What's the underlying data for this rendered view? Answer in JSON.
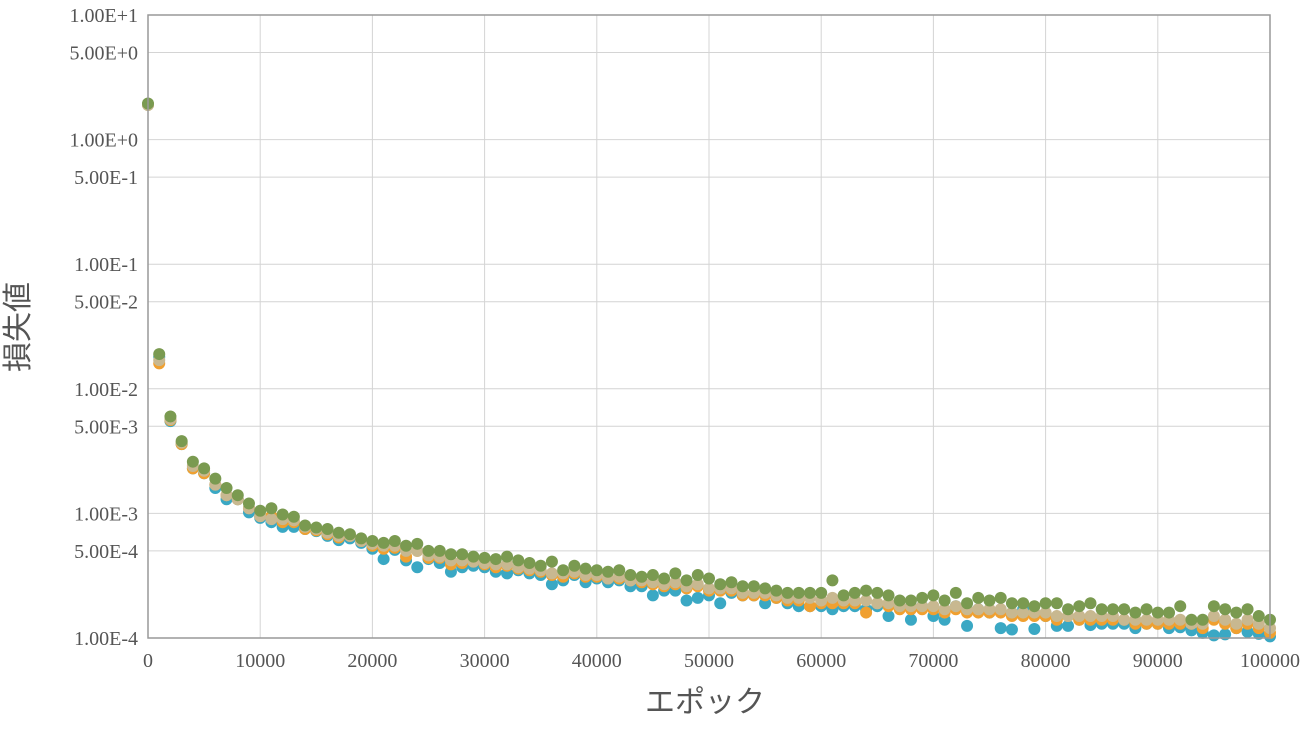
{
  "chart_data": {
    "type": "scatter",
    "xlabel": "エポック",
    "ylabel": "損失値",
    "y_scale": "log",
    "grid": true,
    "legend": "none",
    "xlim": [
      0,
      100000
    ],
    "ylim": [
      0.0001,
      10
    ],
    "x_ticks": [
      0,
      10000,
      20000,
      30000,
      40000,
      50000,
      60000,
      70000,
      80000,
      90000,
      100000
    ],
    "x_tick_labels": [
      "0",
      "10000",
      "20000",
      "30000",
      "40000",
      "50000",
      "60000",
      "70000",
      "80000",
      "90000",
      "100000"
    ],
    "y_ticks": [
      10,
      5,
      1,
      0.5,
      0.1,
      0.05,
      0.01,
      0.005,
      0.001,
      0.0005,
      0.0001
    ],
    "y_tick_labels": [
      "1.00E+1",
      "5.00E+0",
      "1.00E+0",
      "5.00E-1",
      "1.00E-1",
      "5.00E-2",
      "1.00E-2",
      "5.00E-3",
      "1.00E-3",
      "5.00E-4",
      "1.00E-4"
    ],
    "x": [
      0,
      1000,
      2000,
      3000,
      4000,
      5000,
      6000,
      7000,
      8000,
      9000,
      10000,
      11000,
      12000,
      13000,
      14000,
      15000,
      16000,
      17000,
      18000,
      19000,
      20000,
      21000,
      22000,
      23000,
      24000,
      25000,
      26000,
      27000,
      28000,
      29000,
      30000,
      31000,
      32000,
      33000,
      34000,
      35000,
      36000,
      37000,
      38000,
      39000,
      40000,
      41000,
      42000,
      43000,
      44000,
      45000,
      46000,
      47000,
      48000,
      49000,
      50000,
      51000,
      52000,
      53000,
      54000,
      55000,
      56000,
      57000,
      58000,
      59000,
      60000,
      61000,
      62000,
      63000,
      64000,
      65000,
      66000,
      67000,
      68000,
      69000,
      70000,
      71000,
      72000,
      73000,
      74000,
      75000,
      76000,
      77000,
      78000,
      79000,
      80000,
      81000,
      82000,
      83000,
      84000,
      85000,
      86000,
      87000,
      88000,
      89000,
      90000,
      91000,
      92000,
      93000,
      94000,
      95000,
      96000,
      97000,
      98000,
      99000,
      100000
    ],
    "series": [
      {
        "color": "#3aa8c4",
        "values": [
          1.9,
          0.018,
          0.0055,
          0.0036,
          0.0023,
          0.0021,
          0.0016,
          0.0013,
          0.0013,
          0.00102,
          0.00092,
          0.00085,
          0.00078,
          0.00078,
          0.00075,
          0.00072,
          0.00066,
          0.00061,
          0.00063,
          0.00058,
          0.00052,
          0.00043,
          0.00051,
          0.00042,
          0.00037,
          0.00043,
          0.0004,
          0.00034,
          0.00037,
          0.00038,
          0.00037,
          0.00034,
          0.00033,
          0.00035,
          0.00033,
          0.00032,
          0.00027,
          0.00029,
          0.00032,
          0.00028,
          0.0003,
          0.00028,
          0.00029,
          0.00026,
          0.00026,
          0.00022,
          0.00024,
          0.00024,
          0.0002,
          0.00021,
          0.00022,
          0.00019,
          0.00023,
          0.00022,
          0.00022,
          0.00019,
          0.00021,
          0.00019,
          0.00018,
          0.00018,
          0.00018,
          0.00017,
          0.00018,
          0.00018,
          0.00017,
          0.00018,
          0.00015,
          0.00018,
          0.00014,
          0.00018,
          0.00015,
          0.00014,
          0.00018,
          0.000125,
          0.00017,
          0.00016,
          0.00012,
          0.000117,
          0.00017,
          0.000118,
          0.00015,
          0.000125,
          0.000125,
          0.00014,
          0.000127,
          0.00013,
          0.00013,
          0.00013,
          0.00012,
          0.00013,
          0.00013,
          0.00012,
          0.000122,
          0.000115,
          0.00011,
          0.000105,
          0.000107,
          0.00012,
          0.000112,
          0.000108,
          0.000103
        ]
      },
      {
        "color": "#f0a030",
        "values": [
          1.9,
          0.016,
          0.0056,
          0.0036,
          0.0023,
          0.0021,
          0.0017,
          0.0014,
          0.0013,
          0.0011,
          0.00095,
          0.00095,
          0.00085,
          0.00085,
          0.00075,
          0.00073,
          0.00068,
          0.00064,
          0.00066,
          0.0006,
          0.00055,
          0.00052,
          0.00053,
          0.00045,
          0.0005,
          0.00044,
          0.00044,
          0.00039,
          0.0004,
          0.00041,
          0.00039,
          0.00037,
          0.00038,
          0.00036,
          0.00035,
          0.00034,
          0.00032,
          0.00031,
          0.00033,
          0.00031,
          0.00031,
          0.0003,
          0.0003,
          0.00029,
          0.00028,
          0.00027,
          0.00026,
          0.00027,
          0.00025,
          0.00026,
          0.00024,
          0.00024,
          0.00024,
          0.00022,
          0.00022,
          0.00022,
          0.00021,
          0.0002,
          0.0002,
          0.00018,
          0.00019,
          0.00019,
          0.00019,
          0.00019,
          0.00016,
          0.00019,
          0.00018,
          0.00017,
          0.00017,
          0.00017,
          0.00017,
          0.00016,
          0.00017,
          0.00016,
          0.00016,
          0.00016,
          0.00016,
          0.00015,
          0.00015,
          0.00015,
          0.00015,
          0.00014,
          0.00015,
          0.00014,
          0.00014,
          0.00014,
          0.00014,
          0.00014,
          0.00013,
          0.00013,
          0.00013,
          0.00013,
          0.00013,
          0.00013,
          0.00012,
          0.00014,
          0.00013,
          0.00012,
          0.00013,
          0.00012,
          0.00011
        ]
      },
      {
        "color": "#c8b890",
        "values": [
          1.9,
          0.017,
          0.0057,
          0.0037,
          0.0024,
          0.0022,
          0.0017,
          0.0014,
          0.0013,
          0.0011,
          0.00095,
          0.0009,
          0.0009,
          0.00088,
          0.00078,
          0.00075,
          0.0007,
          0.00066,
          0.00066,
          0.0006,
          0.00057,
          0.00055,
          0.00055,
          0.0005,
          0.0005,
          0.00046,
          0.00045,
          0.00042,
          0.00042,
          0.00041,
          0.0004,
          0.00039,
          0.00039,
          0.00037,
          0.00036,
          0.00035,
          0.00033,
          0.00033,
          0.00034,
          0.00032,
          0.00032,
          0.0003,
          0.00031,
          0.00029,
          0.00029,
          0.00028,
          0.00027,
          0.00028,
          0.00026,
          0.00027,
          0.00025,
          0.00025,
          0.00025,
          0.00023,
          0.00023,
          0.00023,
          0.00022,
          0.00021,
          0.00021,
          0.00021,
          0.0002,
          0.00021,
          0.0002,
          0.0002,
          0.0002,
          0.00019,
          0.00019,
          0.00018,
          0.00018,
          0.00018,
          0.00018,
          0.00017,
          0.00018,
          0.00017,
          0.00017,
          0.00017,
          0.00017,
          0.00016,
          0.00016,
          0.00016,
          0.00016,
          0.00015,
          0.00015,
          0.00015,
          0.00015,
          0.00015,
          0.00015,
          0.00014,
          0.00014,
          0.00014,
          0.00014,
          0.00014,
          0.00014,
          0.00013,
          0.00013,
          0.00015,
          0.00014,
          0.00013,
          0.00014,
          0.00013,
          0.00012
        ]
      },
      {
        "color": "#7a9a50",
        "values": [
          1.95,
          0.019,
          0.006,
          0.0038,
          0.0026,
          0.0023,
          0.0019,
          0.0016,
          0.0014,
          0.0012,
          0.00105,
          0.0011,
          0.00098,
          0.00094,
          0.0008,
          0.00077,
          0.00075,
          0.0007,
          0.00068,
          0.00063,
          0.0006,
          0.00058,
          0.0006,
          0.00055,
          0.00057,
          0.0005,
          0.0005,
          0.00047,
          0.00047,
          0.00045,
          0.00044,
          0.00043,
          0.00045,
          0.00042,
          0.0004,
          0.00038,
          0.00041,
          0.00035,
          0.00038,
          0.00036,
          0.00035,
          0.00034,
          0.00035,
          0.00032,
          0.00031,
          0.00032,
          0.0003,
          0.00033,
          0.00029,
          0.00032,
          0.0003,
          0.00027,
          0.00028,
          0.00026,
          0.00026,
          0.00025,
          0.00024,
          0.00023,
          0.00023,
          0.00023,
          0.00023,
          0.00029,
          0.00022,
          0.00023,
          0.00024,
          0.00023,
          0.00022,
          0.0002,
          0.0002,
          0.00021,
          0.00022,
          0.0002,
          0.00023,
          0.00019,
          0.00021,
          0.0002,
          0.00021,
          0.00019,
          0.00019,
          0.00018,
          0.00019,
          0.00019,
          0.00017,
          0.00018,
          0.00019,
          0.00017,
          0.00017,
          0.00017,
          0.00016,
          0.00017,
          0.00016,
          0.00016,
          0.00018,
          0.00014,
          0.00014,
          0.00018,
          0.00017,
          0.00016,
          0.00017,
          0.00015,
          0.00014
        ]
      }
    ]
  }
}
